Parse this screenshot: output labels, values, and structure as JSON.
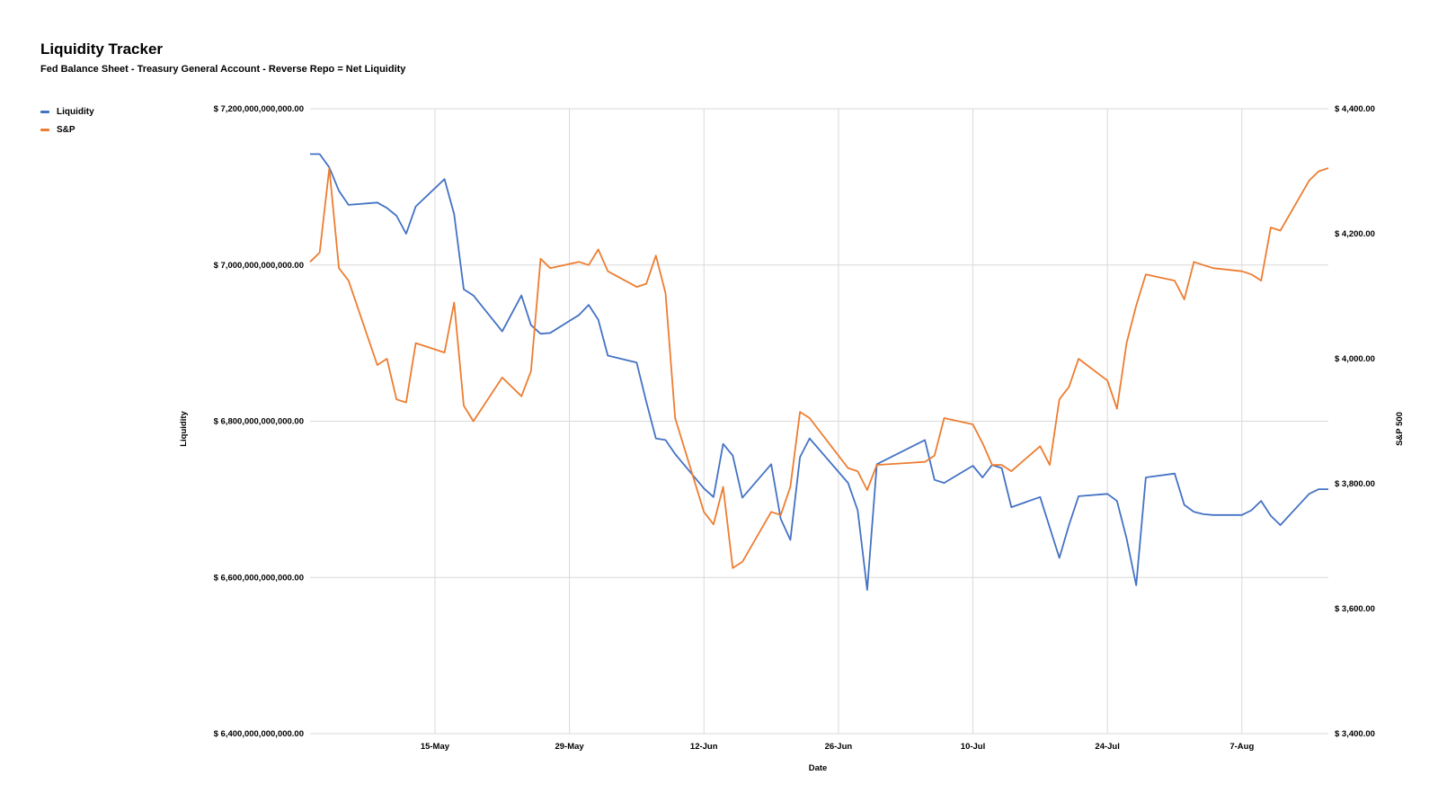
{
  "chart_data": {
    "type": "line",
    "title": "Liquidity Tracker",
    "subtitle": "Fed Balance Sheet - Treasury General Account - Reverse Repo = Net Liquidity",
    "xlabel": "Date",
    "ylabel_left": "Liquidity",
    "ylabel_right": "S&P 500",
    "grid": true,
    "legend_position": "top-left",
    "x_tick_labels": [
      "15-May",
      "29-May",
      "12-Jun",
      "26-Jun",
      "10-Jul",
      "24-Jul",
      "7-Aug"
    ],
    "x_ticks": [
      "2023-05-15",
      "2023-05-29",
      "2023-06-12",
      "2023-06-26",
      "2023-07-10",
      "2023-07-24",
      "2023-08-07"
    ],
    "xlim": [
      "2023-05-02",
      "2023-08-16"
    ],
    "ylim_left": [
      6400000000000,
      7200000000000
    ],
    "ylim_right": [
      3400,
      4400
    ],
    "y_left_tick_labels": [
      "$ 7,200,000,000,000.00",
      "$ 7,000,000,000,000.00",
      "$ 6,800,000,000,000.00",
      "$ 6,600,000,000,000.00",
      "$ 6,400,000,000,000.00"
    ],
    "y_left_ticks": [
      7200000000000,
      7000000000000,
      6800000000000,
      6600000000000,
      6400000000000
    ],
    "y_right_tick_labels": [
      "$ 4,400.00",
      "$ 4,200.00",
      "$ 4,000.00",
      "$ 3,800.00",
      "$ 3,600.00",
      "$ 3,400.00"
    ],
    "y_right_ticks": [
      4400,
      4200,
      4000,
      3800,
      3600,
      3400
    ],
    "series": [
      {
        "name": "Liquidity",
        "color": "#4472c4",
        "axis": "left",
        "x": [
          "2023-05-02",
          "2023-05-03",
          "2023-05-04",
          "2023-05-05",
          "2023-05-06",
          "2023-05-09",
          "2023-05-10",
          "2023-05-11",
          "2023-05-12",
          "2023-05-13",
          "2023-05-16",
          "2023-05-17",
          "2023-05-18",
          "2023-05-19",
          "2023-05-22",
          "2023-05-24",
          "2023-05-25",
          "2023-05-26",
          "2023-05-27",
          "2023-05-30",
          "2023-05-31",
          "2023-06-01",
          "2023-06-02",
          "2023-06-05",
          "2023-06-06",
          "2023-06-07",
          "2023-06-08",
          "2023-06-09",
          "2023-06-12",
          "2023-06-13",
          "2023-06-14",
          "2023-06-15",
          "2023-06-16",
          "2023-06-19",
          "2023-06-20",
          "2023-06-21",
          "2023-06-22",
          "2023-06-23",
          "2023-06-27",
          "2023-06-28",
          "2023-06-29",
          "2023-06-30",
          "2023-07-05",
          "2023-07-06",
          "2023-07-07",
          "2023-07-10",
          "2023-07-11",
          "2023-07-12",
          "2023-07-13",
          "2023-07-14",
          "2023-07-17",
          "2023-07-18",
          "2023-07-19",
          "2023-07-20",
          "2023-07-21",
          "2023-07-24",
          "2023-07-25",
          "2023-07-26",
          "2023-07-27",
          "2023-07-28",
          "2023-07-31",
          "2023-08-01",
          "2023-08-02",
          "2023-08-03",
          "2023-08-04",
          "2023-08-07",
          "2023-08-08",
          "2023-08-09",
          "2023-08-10",
          "2023-08-11",
          "2023-08-14",
          "2023-08-15",
          "2023-08-16"
        ],
        "values": [
          7142000000000,
          7142000000000,
          7125000000000,
          7095000000000,
          7077000000000,
          7080000000000,
          7073000000000,
          7063000000000,
          7040000000000,
          7075000000000,
          7110000000000,
          7065000000000,
          6969000000000,
          6961000000000,
          6915000000000,
          6961000000000,
          6923000000000,
          6912000000000,
          6913000000000,
          6936000000000,
          6949000000000,
          6930000000000,
          6884000000000,
          6875000000000,
          6825000000000,
          6778000000000,
          6776000000000,
          6758000000000,
          6714000000000,
          6703000000000,
          6771000000000,
          6756000000000,
          6702000000000,
          6745000000000,
          6675000000000,
          6648000000000,
          6754000000000,
          6778000000000,
          6721000000000,
          6686000000000,
          6584000000000,
          6745000000000,
          6776000000000,
          6725000000000,
          6721000000000,
          6743000000000,
          6728000000000,
          6744000000000,
          6740000000000,
          6690000000000,
          6703000000000,
          6664000000000,
          6625000000000,
          6667000000000,
          6704000000000,
          6707000000000,
          6698000000000,
          6650000000000,
          6590000000000,
          6728000000000,
          6733000000000,
          6693000000000,
          6684000000000,
          6681000000000,
          6680000000000,
          6680000000000,
          6686000000000,
          6698000000000,
          6679000000000,
          6667000000000,
          6707000000000,
          6713000000000,
          6713000000000
        ]
      },
      {
        "name": "S&P",
        "color": "#ed7d31",
        "axis": "right",
        "x": [
          "2023-05-02",
          "2023-05-03",
          "2023-05-04",
          "2023-05-05",
          "2023-05-06",
          "2023-05-09",
          "2023-05-10",
          "2023-05-11",
          "2023-05-12",
          "2023-05-13",
          "2023-05-16",
          "2023-05-17",
          "2023-05-18",
          "2023-05-19",
          "2023-05-22",
          "2023-05-24",
          "2023-05-25",
          "2023-05-26",
          "2023-05-27",
          "2023-05-30",
          "2023-05-31",
          "2023-06-01",
          "2023-06-02",
          "2023-06-05",
          "2023-06-06",
          "2023-06-07",
          "2023-06-08",
          "2023-06-09",
          "2023-06-12",
          "2023-06-13",
          "2023-06-14",
          "2023-06-15",
          "2023-06-16",
          "2023-06-19",
          "2023-06-20",
          "2023-06-21",
          "2023-06-22",
          "2023-06-23",
          "2023-06-27",
          "2023-06-28",
          "2023-06-29",
          "2023-06-30",
          "2023-07-05",
          "2023-07-06",
          "2023-07-07",
          "2023-07-10",
          "2023-07-11",
          "2023-07-12",
          "2023-07-13",
          "2023-07-14",
          "2023-07-17",
          "2023-07-18",
          "2023-07-19",
          "2023-07-20",
          "2023-07-21",
          "2023-07-24",
          "2023-07-25",
          "2023-07-26",
          "2023-07-27",
          "2023-07-28",
          "2023-07-31",
          "2023-08-01",
          "2023-08-02",
          "2023-08-03",
          "2023-08-04",
          "2023-08-07",
          "2023-08-08",
          "2023-08-09",
          "2023-08-10",
          "2023-08-11",
          "2023-08-14",
          "2023-08-15",
          "2023-08-16"
        ],
        "values": [
          4155,
          4170,
          4305,
          4145,
          4125,
          3990,
          4000,
          3935,
          3930,
          4025,
          4010,
          4090,
          3925,
          3900,
          3970,
          3940,
          3980,
          4160,
          4145,
          4155,
          4150,
          4175,
          4140,
          4115,
          4120,
          4165,
          4105,
          3905,
          3755,
          3735,
          3795,
          3665,
          3675,
          3755,
          3750,
          3795,
          3915,
          3905,
          3825,
          3820,
          3790,
          3830,
          3835,
          3845,
          3905,
          3895,
          3865,
          3830,
          3830,
          3820,
          3860,
          3830,
          3935,
          3955,
          4000,
          3965,
          3920,
          4025,
          4085,
          4135,
          4125,
          4095,
          4155,
          4150,
          4145,
          4140,
          4135,
          4125,
          4210,
          4205,
          4285,
          4300,
          4305
        ]
      }
    ]
  }
}
